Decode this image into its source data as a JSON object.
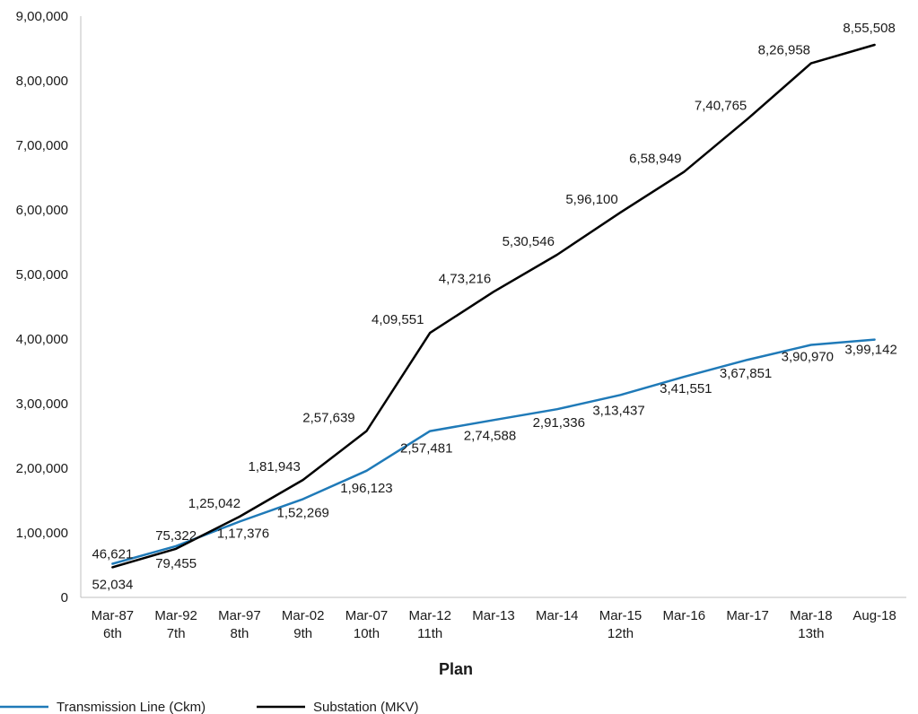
{
  "chart_data": {
    "type": "line",
    "categories": [
      "Mar-87",
      "Mar-92",
      "Mar-97",
      "Mar-02",
      "Mar-07",
      "Mar-12",
      "Mar-13",
      "Mar-14",
      "Mar-15",
      "Mar-16",
      "Mar-17",
      "Mar-18",
      "Aug-18"
    ],
    "plans": [
      "6th",
      "7th",
      "8th",
      "9th",
      "10th",
      "11th",
      "",
      "",
      "12th",
      "",
      "",
      "13th",
      ""
    ],
    "series": [
      {
        "name": "Transmission Line (Ckm)",
        "color": "#1f7ab8",
        "values": [
          52034,
          79455,
          117376,
          152269,
          196123,
          257481,
          274588,
          291336,
          313437,
          341551,
          367851,
          390970,
          399142
        ],
        "labels": [
          "52,034",
          "79,455",
          "1,17,376",
          "1,52,269",
          "1,96,123",
          "2,57,481",
          "2,74,588",
          "2,91,336",
          "3,13,437",
          "3,41,551",
          "3,67,851",
          "3,90,970",
          "3,99,142"
        ]
      },
      {
        "name": "Substation (MKV)",
        "color": "#000000",
        "values": [
          46621,
          75322,
          125042,
          181943,
          257639,
          409551,
          473216,
          530546,
          596100,
          658949,
          740765,
          826958,
          855508
        ],
        "labels": [
          "46,621",
          "75,322",
          "1,25,042",
          "1,81,943",
          "2,57,639",
          "4,09,551",
          "4,73,216",
          "5,30,546",
          "5,96,100",
          "6,58,949",
          "7,40,765",
          "8,26,958",
          "8,55,508"
        ]
      }
    ],
    "y_ticks": [
      0,
      100000,
      200000,
      300000,
      400000,
      500000,
      600000,
      700000,
      800000,
      900000
    ],
    "y_tick_labels": [
      "0",
      "1,00,000",
      "2,00,000",
      "3,00,000",
      "4,00,000",
      "5,00,000",
      "6,00,000",
      "7,00,000",
      "8,00,000",
      "9,00,000"
    ],
    "ylim": [
      0,
      900000
    ],
    "xlabel": "Plan",
    "ylabel": "",
    "grid": false,
    "legend_position": "bottom-left"
  }
}
